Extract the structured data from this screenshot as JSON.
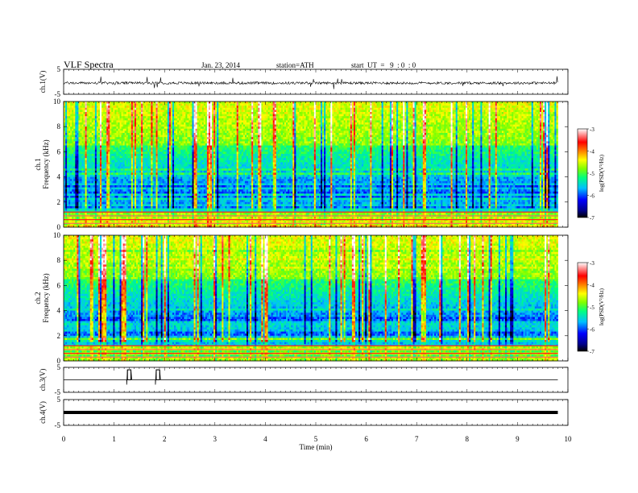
{
  "header": {
    "title": "VLF Spectra",
    "date": "Jan. 23, 2014",
    "station": "station=ATH",
    "start": "start  UT  =   9  : 0  : 0"
  },
  "colors": {
    "trace": "#000000",
    "axis": "#000000"
  },
  "chart_data": [
    {
      "type": "line",
      "panel": "ch1-waveform",
      "ylabel": "ch.1(V)",
      "ylim": [
        -5,
        5
      ],
      "yticks": [
        "5",
        "-5"
      ],
      "xlim": [
        0,
        10
      ],
      "series": [
        {
          "values_desc": "noisy trace around -0.5 V",
          "baseline": -0.5,
          "amplitude": 1.0,
          "x_end": 9.8
        }
      ]
    },
    {
      "type": "heatmap",
      "panel": "ch1-spectrogram",
      "ylabel": "ch.1",
      "ylabel2": "Frequency  (kHz)",
      "ylim": [
        0,
        10
      ],
      "yticks": [
        "0",
        "2",
        "4",
        "6",
        "8",
        "10"
      ],
      "xlim": [
        0,
        10
      ],
      "data_xmax": 9.8,
      "colorbar": {
        "label": "log(PSD(V²/Hz)",
        "range": [
          -7,
          -3
        ],
        "ticks": [
          "-3",
          "-4",
          "-5",
          "-6",
          "-7"
        ]
      }
    },
    {
      "type": "heatmap",
      "panel": "ch2-spectrogram",
      "ylabel": "ch.2",
      "ylabel2": "Frequency  (kHz)",
      "ylim": [
        0,
        10
      ],
      "yticks": [
        "0",
        "2",
        "4",
        "6",
        "8",
        "10"
      ],
      "xlim": [
        0,
        10
      ],
      "data_xmax": 9.8,
      "colorbar": {
        "label": "log(PSD(V²/Hz)",
        "range": [
          -7,
          -3
        ],
        "ticks": [
          "-3",
          "-4",
          "-5",
          "-6",
          "-7"
        ]
      }
    },
    {
      "type": "line",
      "panel": "ch3-waveform",
      "ylabel": "ch.3(V)",
      "ylim": [
        -5,
        5
      ],
      "yticks": [
        "5",
        "-5"
      ],
      "xlim": [
        0,
        10
      ],
      "series": [
        {
          "baseline": 0,
          "pulses": [
            [
              1.25,
              1.35
            ],
            [
              1.82,
              1.92
            ]
          ],
          "pulse_level": 4,
          "x_end": 9.8
        }
      ]
    },
    {
      "type": "line",
      "panel": "ch4-waveform",
      "ylabel": "ch.4(V)",
      "ylim": [
        -5,
        5
      ],
      "yticks": [
        "5",
        "-5"
      ],
      "xlim": [
        0,
        10
      ],
      "series": [
        {
          "baseline": 0,
          "thick": true,
          "x_end": 9.8
        }
      ]
    }
  ],
  "xaxis": {
    "label": "Time  (min)",
    "ticks": [
      "0",
      "1",
      "2",
      "3",
      "4",
      "5",
      "6",
      "7",
      "8",
      "9",
      "10"
    ],
    "range": [
      0,
      10
    ]
  }
}
